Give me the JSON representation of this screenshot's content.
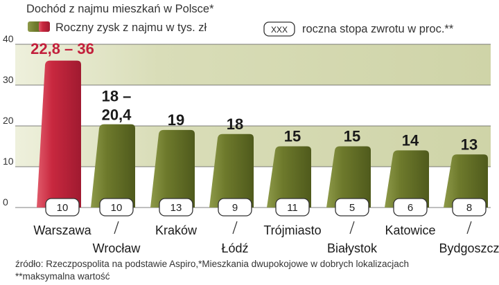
{
  "chart_data": {
    "type": "bar",
    "title": "Dochód z najmu mieszkań w Polsce*",
    "legend": {
      "bar_label": "Roczny zysk z najmu w tys. zł",
      "box_sample": "XXX",
      "box_label": "roczna stopa zwrotu w proc.**"
    },
    "y_ticks": [
      "0",
      "10",
      "20",
      "30",
      "40"
    ],
    "ylim": [
      0,
      40
    ],
    "grid": true,
    "colors": {
      "highlight": "#c8283f",
      "olive": "#6e7a2c",
      "olive_dark": "#56611f",
      "label_highlight": "#c21f3c"
    },
    "categories": [
      "Warszawa",
      "Wrocław",
      "Kraków",
      "Łódź",
      "Trójmiasto",
      "Białystok",
      "Katowice",
      "Bydgoszcz"
    ],
    "values": [
      36,
      20.4,
      19,
      18,
      15,
      15,
      14,
      13
    ],
    "value_labels": [
      [
        "22,8 – 36"
      ],
      [
        "18 –",
        "20,4"
      ],
      [
        "19"
      ],
      [
        "18"
      ],
      [
        "15"
      ],
      [
        "15"
      ],
      [
        "14"
      ],
      [
        "13"
      ]
    ],
    "yield_values": [
      "10",
      "10",
      "13",
      "9",
      "11",
      "5",
      "6",
      "8"
    ],
    "highlight_index": 0,
    "source_note": "źródło: Rzeczpospolita na podstawie Aspiro,*Mieszkania dwupokojowe w dobrych lokalizacjach",
    "footnote": "**maksymalna wartość"
  }
}
